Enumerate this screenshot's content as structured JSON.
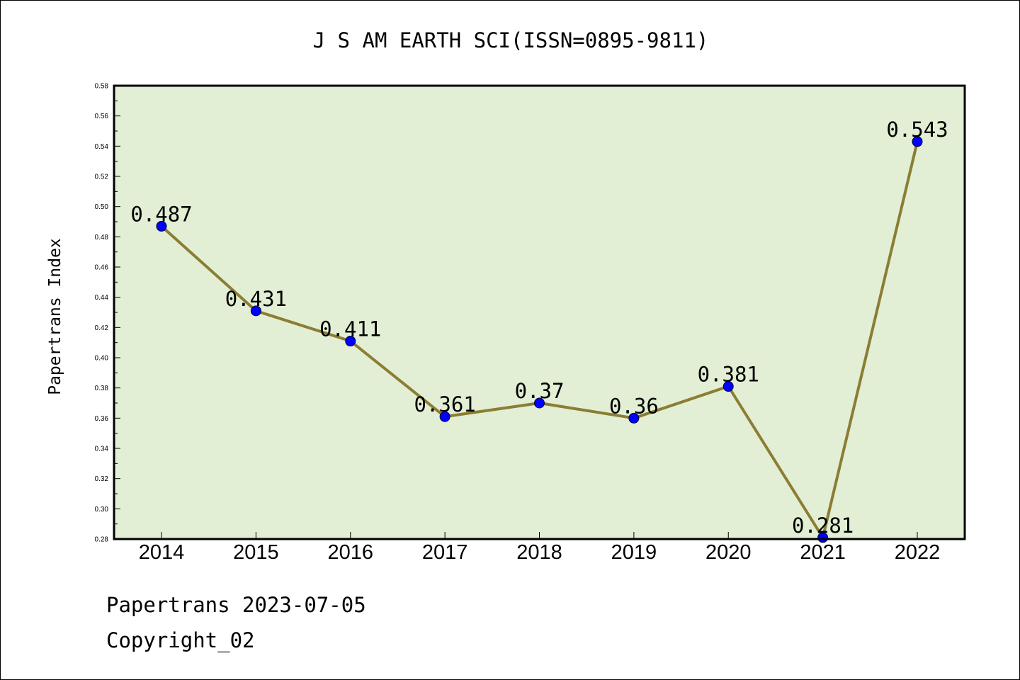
{
  "chart_data": {
    "type": "line",
    "title": "J S AM EARTH SCI(ISSN=0895-9811)",
    "xlabel": "",
    "ylabel": "Papertrans Index",
    "categories": [
      "2014",
      "2015",
      "2016",
      "2017",
      "2018",
      "2019",
      "2020",
      "2021",
      "2022"
    ],
    "values": [
      0.487,
      0.431,
      0.411,
      0.361,
      0.37,
      0.36,
      0.381,
      0.281,
      0.543
    ],
    "data_labels": [
      "0.487",
      "0.431",
      "0.411",
      "0.361",
      "0.37",
      "0.36",
      "0.381",
      "0.281",
      "0.543"
    ],
    "ylim": [
      0.28,
      0.58
    ],
    "yticks": [
      "0.28",
      "0.30",
      "0.32",
      "0.34",
      "0.36",
      "0.38",
      "0.40",
      "0.42",
      "0.44",
      "0.46",
      "0.48",
      "0.50",
      "0.52",
      "0.54",
      "0.56",
      "0.58"
    ],
    "grid": false,
    "legend": "none",
    "colors": {
      "plot_background": "#e2efd4",
      "line": "#8b7d34",
      "marker": "#0000ff",
      "axes": "#000000"
    }
  },
  "footer": {
    "line1": "Papertrans 2023-07-05",
    "line2": "Copyright_02"
  }
}
